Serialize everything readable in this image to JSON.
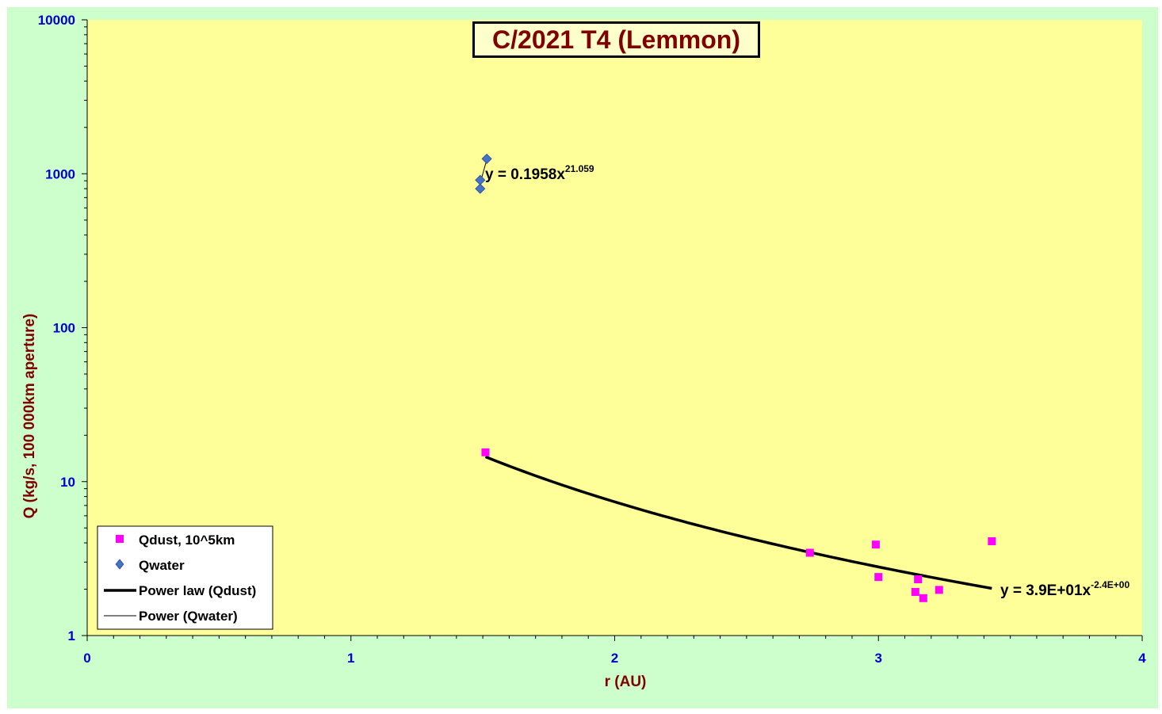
{
  "chart_data": {
    "type": "scatter",
    "title": "C/2021 T4 (Lemmon)",
    "xlabel": "r (AU)",
    "ylabel": "Q (kg/s, 100 000km aperture)",
    "xlim": [
      0,
      4
    ],
    "ylim": [
      1,
      10000
    ],
    "yscale": "log",
    "x_ticks": [
      "0",
      "1",
      "2",
      "3",
      "4"
    ],
    "y_ticks": [
      "1",
      "10",
      "100",
      "1000",
      "10000"
    ],
    "plot_background": "#ffff99",
    "chart_background": "#ccffcc",
    "grid": false,
    "legend_position": "bottom-left",
    "series": [
      {
        "name": "Qdust, 10^5km",
        "marker": "square",
        "color": "#ff00ff",
        "points": [
          {
            "x": 1.51,
            "y": 15.5
          },
          {
            "x": 2.74,
            "y": 3.45
          },
          {
            "x": 2.99,
            "y": 3.9
          },
          {
            "x": 3.0,
            "y": 2.4
          },
          {
            "x": 3.14,
            "y": 1.92
          },
          {
            "x": 3.15,
            "y": 2.32
          },
          {
            "x": 3.17,
            "y": 1.75
          },
          {
            "x": 3.23,
            "y": 1.98
          },
          {
            "x": 3.43,
            "y": 4.1
          }
        ]
      },
      {
        "name": "Qwater",
        "marker": "diamond",
        "color": "#4472c4",
        "points": [
          {
            "x": 1.49,
            "y": 910
          },
          {
            "x": 1.49,
            "y": 800
          },
          {
            "x": 1.515,
            "y": 1250
          }
        ]
      }
    ],
    "trendlines": [
      {
        "name": "Power law (Qdust)",
        "equation_base": "y = 3.9E+01x",
        "equation_exp": "-2.4E+00",
        "coef": 39,
        "exponent": -2.4,
        "x_range": [
          1.51,
          3.43
        ],
        "width": 3.5
      },
      {
        "name": "Power (Qwater)",
        "equation_base": "y = 0.1958x",
        "equation_exp": "21.059",
        "coef": 0.1958,
        "exponent": 21.059,
        "x_range": [
          1.49,
          1.515
        ],
        "width": 1
      }
    ]
  }
}
